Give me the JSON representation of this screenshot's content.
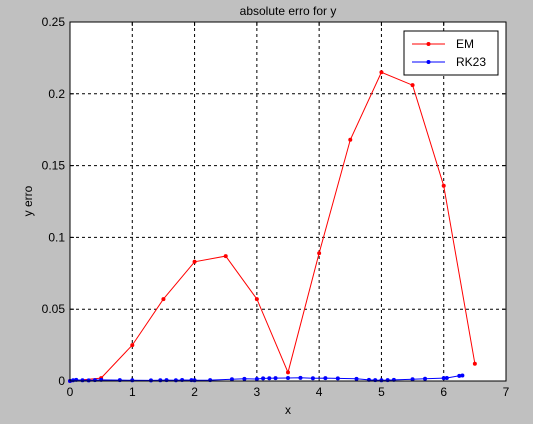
{
  "chart_data": {
    "type": "line",
    "title": "absolute erro for y",
    "xlabel": "x",
    "ylabel": "y erro",
    "xlim": [
      0,
      7
    ],
    "ylim": [
      0,
      0.25
    ],
    "xticks": [
      "0",
      "1",
      "2",
      "3",
      "4",
      "5",
      "6",
      "7"
    ],
    "yticks": [
      "0",
      "0.05",
      "0.1",
      "0.15",
      "0.2",
      "0.25"
    ],
    "grid": true,
    "legend_position": "top-right",
    "series": [
      {
        "name": "EM",
        "color": "#ff0000",
        "marker": "dot",
        "x": [
          0,
          0.5,
          1,
          1.5,
          2,
          2.5,
          3,
          3.5,
          4,
          4.5,
          5,
          5.5,
          6,
          6.5
        ],
        "y": [
          0,
          0.002,
          0.025,
          0.057,
          0.083,
          0.087,
          0.057,
          0.006,
          0.089,
          0.168,
          0.215,
          0.206,
          0.136,
          0.012
        ]
      },
      {
        "name": "RK23",
        "color": "#0000ff",
        "marker": "dot",
        "x": [
          0,
          0.05,
          0.1,
          0.2,
          0.3,
          0.4,
          0.5,
          0.8,
          1.0,
          1.3,
          1.45,
          1.55,
          1.7,
          1.8,
          1.95,
          2.0,
          2.25,
          2.6,
          2.8,
          3.0,
          3.1,
          3.2,
          3.3,
          3.5,
          3.7,
          3.9,
          4.1,
          4.3,
          4.6,
          4.8,
          4.9,
          5.0,
          5.1,
          5.2,
          5.5,
          5.7,
          6.0,
          6.05,
          6.25,
          6.3
        ],
        "y": [
          0,
          0.0005,
          0.0008,
          0.0005,
          0.0004,
          0.0006,
          0.0008,
          0.0006,
          0.0005,
          0.0004,
          0.0005,
          0.0006,
          0.0005,
          0.0007,
          0.0006,
          0.0005,
          0.0006,
          0.0012,
          0.0015,
          0.0014,
          0.0018,
          0.0019,
          0.002,
          0.0021,
          0.0022,
          0.0019,
          0.002,
          0.0018,
          0.0015,
          0.0008,
          0.0006,
          0.0005,
          0.0006,
          0.0008,
          0.0012,
          0.0016,
          0.002,
          0.0021,
          0.0036,
          0.0038
        ]
      }
    ]
  }
}
